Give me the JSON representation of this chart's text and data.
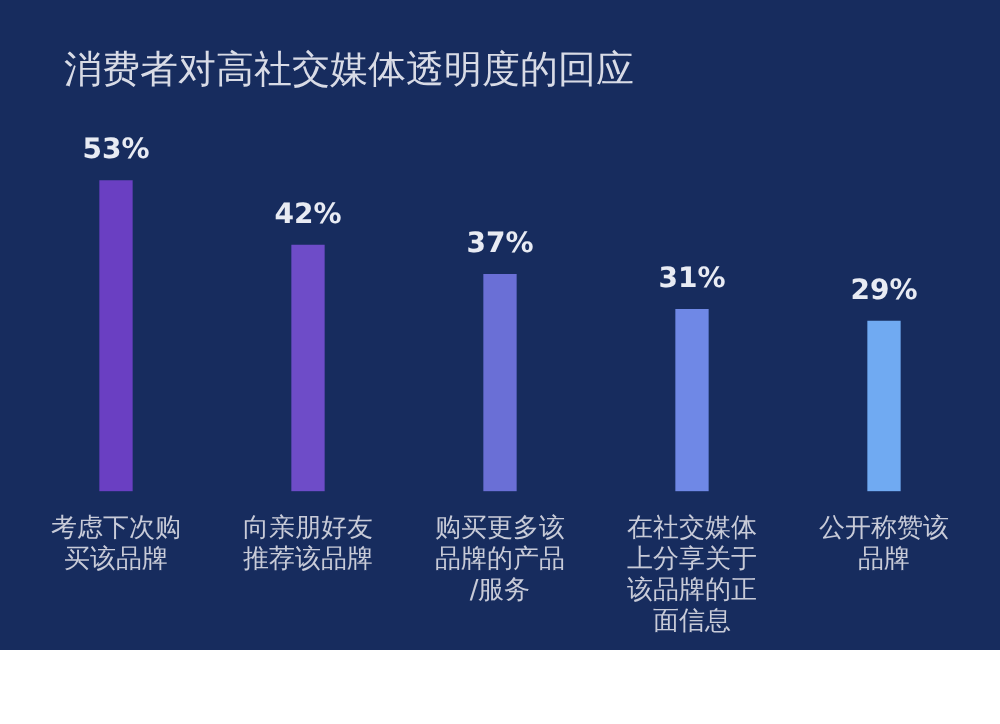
{
  "chart_data": {
    "type": "bar",
    "title": "消费者对高社交媒体透明度的回应",
    "categories": [
      "考虑下次购买该品牌",
      "向亲朋好友推荐该品牌",
      "购买更多该品牌的产品/服务",
      "在社交媒体上分享关于该品牌的正面信息",
      "公开称赞该品牌"
    ],
    "values": [
      53,
      42,
      37,
      31,
      29
    ],
    "value_labels": [
      "53%",
      "42%",
      "37%",
      "31%",
      "29%"
    ],
    "colors": [
      "#6a3fc2",
      "#6e4cc8",
      "#6a6fd6",
      "#6f88e6",
      "#70aaf2"
    ],
    "tick_labels": "x",
    "grid": false,
    "legend": false
  }
}
